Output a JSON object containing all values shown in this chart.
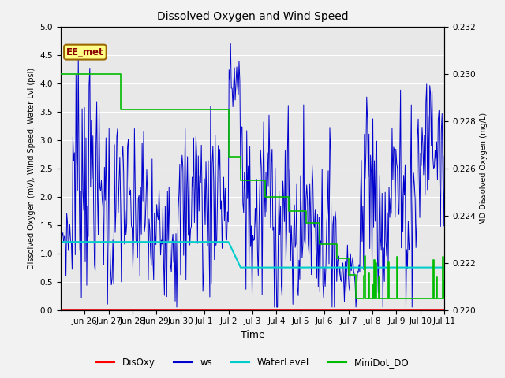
{
  "title": "Dissolved Oxygen and Wind Speed",
  "xlabel": "Time",
  "ylabel_left": "Dissolved Oxygen (mV), Wind Speed, Water Lvl (psi)",
  "ylabel_right": "MD Dissolved Oxygen (mg/L)",
  "annotation": "EE_met",
  "ylim_left": [
    0.0,
    5.0
  ],
  "ylim_right": [
    0.22,
    0.232
  ],
  "yticks_left": [
    0.0,
    0.5,
    1.0,
    1.5,
    2.0,
    2.5,
    3.0,
    3.5,
    4.0,
    4.5,
    5.0
  ],
  "yticks_right": [
    0.22,
    0.222,
    0.224,
    0.226,
    0.228,
    0.23,
    0.232
  ],
  "xtick_pos": [
    1,
    2,
    3,
    4,
    5,
    6,
    7,
    8,
    9,
    10,
    11,
    12,
    13,
    14,
    15,
    16
  ],
  "xtick_labels": [
    "Jun 26",
    "Jun 27",
    "Jun 28",
    "Jun 29",
    "Jun 30",
    "Jul 1",
    "Jul 2",
    "Jul 3",
    "Jul 4",
    "Jul 5",
    "Jul 6",
    "Jul 7",
    "Jul 8",
    "Jul 9",
    "Jul 10",
    "Jul 11"
  ],
  "xlim": [
    0,
    16
  ],
  "colors": {
    "DisOxy": "#ff0000",
    "ws": "#0000cc",
    "WaterLevel": "#00cccc",
    "MiniDot_DO": "#00bb00"
  },
  "plot_bg": "#e8e8e8",
  "fig_bg": "#f2f2f2",
  "figsize": [
    6.4,
    4.8
  ],
  "dpi": 100
}
